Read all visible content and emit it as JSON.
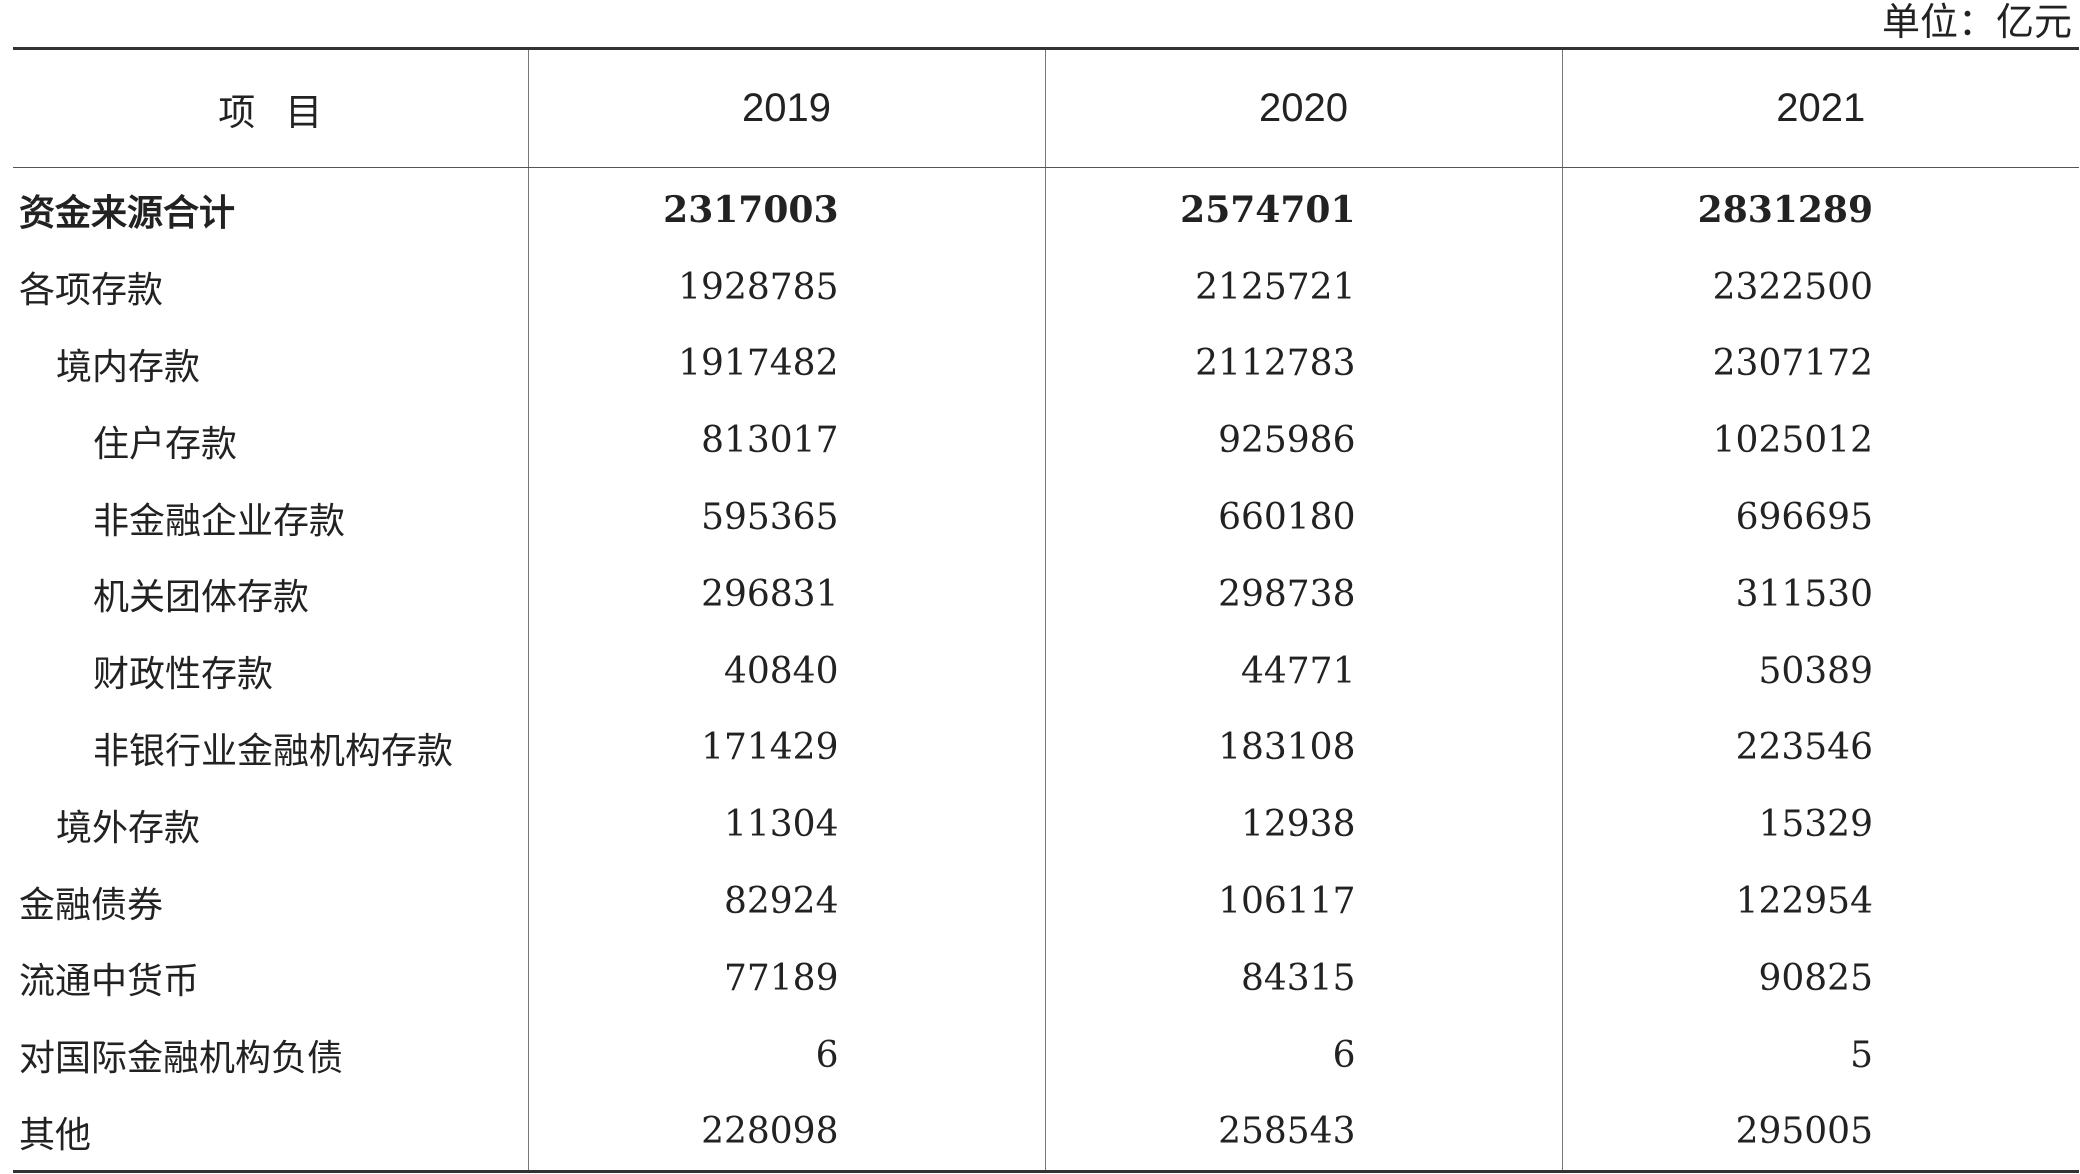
{
  "unit": "单位：亿元",
  "header": {
    "item": "项目",
    "years": [
      "2019",
      "2020",
      "2021"
    ]
  },
  "rows": [
    {
      "label": "资金来源合计",
      "level": 0,
      "bold": true,
      "values": [
        "2317003",
        "2574701",
        "2831289"
      ]
    },
    {
      "label": "各项存款",
      "level": 0,
      "bold": false,
      "values": [
        "1928785",
        "2125721",
        "2322500"
      ]
    },
    {
      "label": "境内存款",
      "level": 1,
      "bold": false,
      "values": [
        "1917482",
        "2112783",
        "2307172"
      ]
    },
    {
      "label": "住户存款",
      "level": 2,
      "bold": false,
      "values": [
        "813017",
        "925986",
        "1025012"
      ]
    },
    {
      "label": "非金融企业存款",
      "level": 2,
      "bold": false,
      "values": [
        "595365",
        "660180",
        "696695"
      ]
    },
    {
      "label": "机关团体存款",
      "level": 2,
      "bold": false,
      "values": [
        "296831",
        "298738",
        "311530"
      ]
    },
    {
      "label": "财政性存款",
      "level": 2,
      "bold": false,
      "values": [
        "40840",
        "44771",
        "50389"
      ]
    },
    {
      "label": "非银行业金融机构存款",
      "level": 2,
      "bold": false,
      "values": [
        "171429",
        "183108",
        "223546"
      ]
    },
    {
      "label": "境外存款",
      "level": 1,
      "bold": false,
      "values": [
        "11304",
        "12938",
        "15329"
      ]
    },
    {
      "label": "金融债券",
      "level": 0,
      "bold": false,
      "values": [
        "82924",
        "106117",
        "122954"
      ]
    },
    {
      "label": "流通中货币",
      "level": 0,
      "bold": false,
      "values": [
        "77189",
        "84315",
        "90825"
      ]
    },
    {
      "label": "对国际金融机构负债",
      "level": 0,
      "bold": false,
      "values": [
        "6",
        "6",
        "5"
      ]
    },
    {
      "label": "其他",
      "level": 0,
      "bold": false,
      "values": [
        "228098",
        "258543",
        "295005"
      ]
    }
  ]
}
